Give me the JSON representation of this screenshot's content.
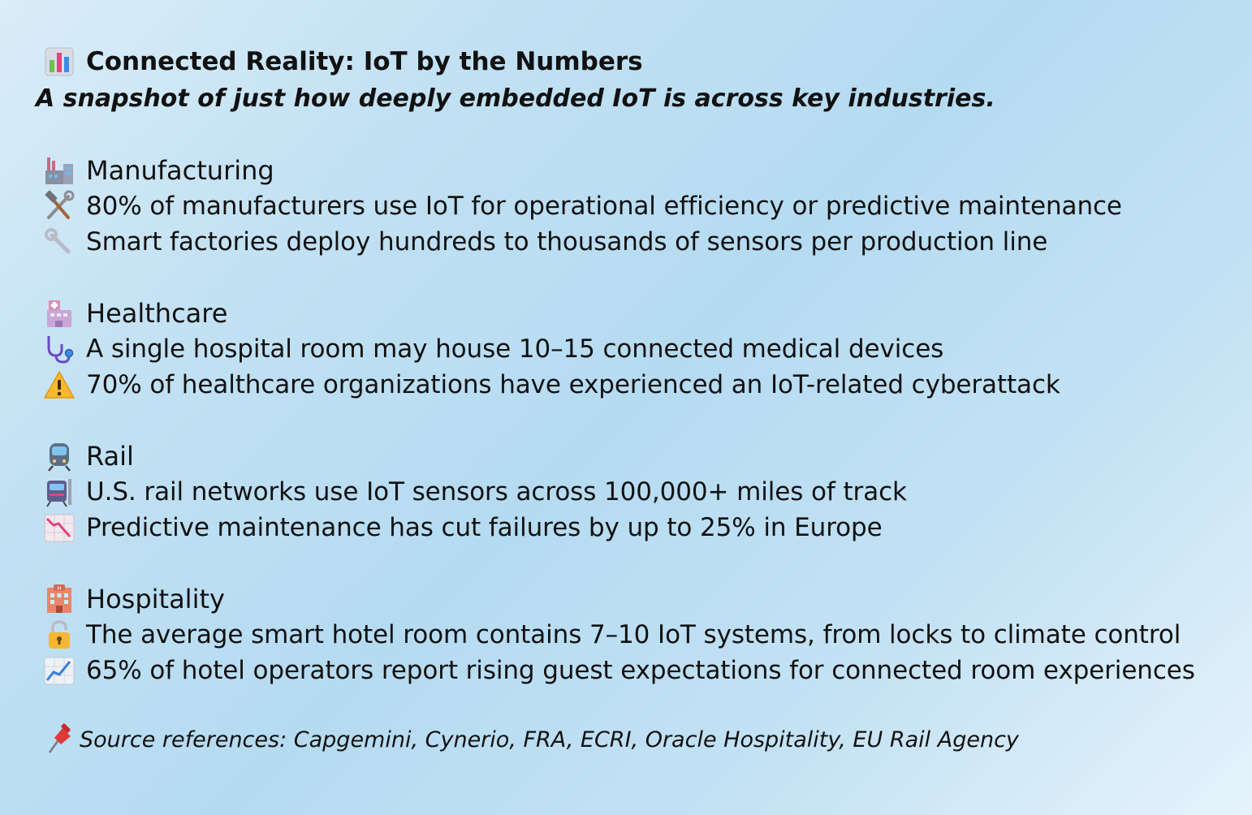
{
  "header": {
    "title": "Connected Reality: IoT by the Numbers",
    "title_icon": "bar-chart-icon",
    "subtitle": "A snapshot of just how deeply embedded IoT is across key industries."
  },
  "sections": [
    {
      "heading": "Manufacturing",
      "icon": "factory-icon",
      "items": [
        {
          "icon": "hammer-and-wrench-icon",
          "text": "80% of manufacturers use IoT for operational efficiency or predictive maintenance"
        },
        {
          "icon": "wrench-icon",
          "text": "Smart factories deploy hundreds to thousands of sensors per production line"
        }
      ]
    },
    {
      "heading": "Healthcare",
      "icon": "hospital-icon",
      "items": [
        {
          "icon": "stethoscope-icon",
          "text": "A single hospital room may house 10–15 connected medical devices"
        },
        {
          "icon": "warning-icon",
          "text": "70% of healthcare organizations have experienced an IoT-related cyberattack"
        }
      ]
    },
    {
      "heading": "Rail",
      "icon": "train-icon",
      "items": [
        {
          "icon": "light-rail-icon",
          "text": "U.S. rail networks use IoT sensors across 100,000+ miles of track"
        },
        {
          "icon": "chart-decreasing-icon",
          "text": "Predictive maintenance has cut failures by up to 25% in Europe"
        }
      ]
    },
    {
      "heading": "Hospitality",
      "icon": "hotel-icon",
      "items": [
        {
          "icon": "lock-icon",
          "text": "The average smart hotel room contains 7–10 IoT systems, from locks to climate control"
        },
        {
          "icon": "chart-increasing-icon",
          "text": "65% of hotel operators report rising guest expectations for connected room experiences"
        }
      ]
    }
  ],
  "footer": {
    "icon": "pushpin-icon",
    "source": "Source references: Capgemini, Cynerio, FRA, ECRI, Oracle Hospitality, EU Rail Agency"
  }
}
